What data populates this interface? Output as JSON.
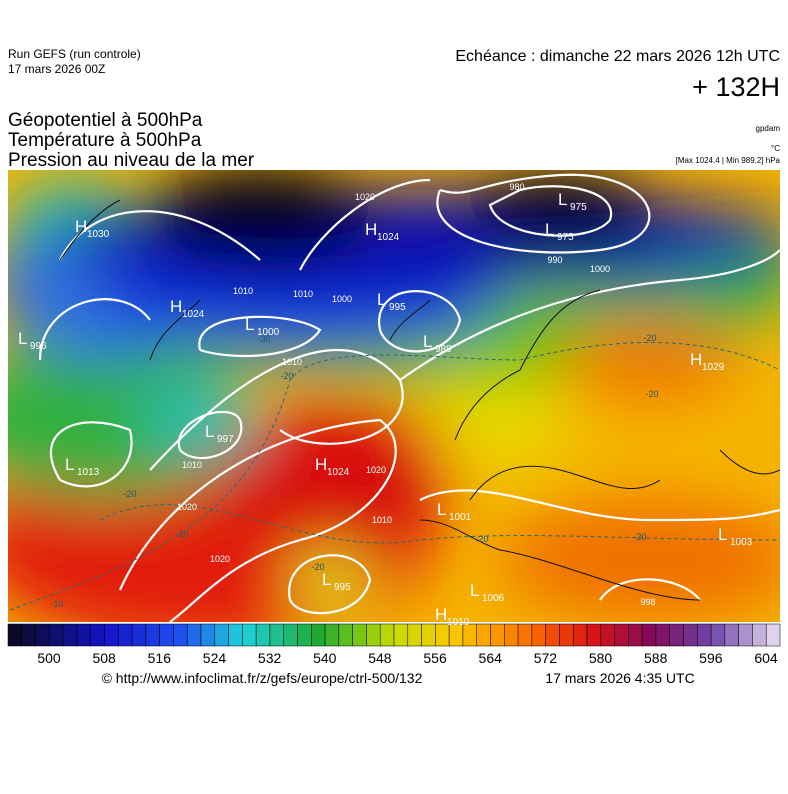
{
  "header": {
    "run": "Run GEFS (run controle)",
    "run_date": "17 mars 2026 00Z",
    "echeance": "Echéance : dimanche 22 mars 2026 12h UTC",
    "lead": "+ 132H"
  },
  "titles": [
    "Géopotentiel à 500hPa",
    "Température à 500hPa",
    "Pression au niveau de la mer"
  ],
  "units": {
    "geopotential": "gpdam",
    "temperature": "°C",
    "pressure": "[Max 1024.4 | Min 989.2] hPa"
  },
  "systems": [
    {
      "letter": "H",
      "value": "1030"
    },
    {
      "letter": "L",
      "value": "996"
    },
    {
      "letter": "H",
      "value": "1024"
    },
    {
      "letter": "L",
      "value": "1000"
    },
    {
      "letter": "H",
      "value": "1024"
    },
    {
      "letter": "L",
      "value": "995"
    },
    {
      "letter": "L",
      "value": "989"
    },
    {
      "letter": "L",
      "value": "975"
    },
    {
      "letter": "L",
      "value": "975"
    },
    {
      "letter": "H",
      "value": "1029"
    },
    {
      "letter": "L",
      "value": "997"
    },
    {
      "letter": "L",
      "value": "1013"
    },
    {
      "letter": "H",
      "value": "1024"
    },
    {
      "letter": "L",
      "value": "1001"
    },
    {
      "letter": "L",
      "value": "1003"
    },
    {
      "letter": "L",
      "value": "995"
    },
    {
      "letter": "L",
      "value": "1006"
    },
    {
      "letter": "H",
      "value": "1010"
    }
  ],
  "isobar_labels": [
    "1020",
    "990",
    "1000",
    "1010",
    "1010",
    "1000",
    "1010",
    "1010",
    "1020",
    "1020",
    "1020",
    "1010",
    "980",
    "998"
  ],
  "temperature_labels": [
    "-20",
    "-20",
    "-20",
    "-20",
    "-20",
    "-20",
    "-10",
    "-10",
    "-30",
    "-20"
  ],
  "colorbar": [
    500,
    508,
    516,
    524,
    532,
    540,
    548,
    556,
    564,
    572,
    580,
    588,
    596,
    604
  ],
  "footer": {
    "url": "© http://www.infoclimat.fr/z/gefs/europe/ctrl-500/132",
    "date": "17 mars 2026  4:35 UTC"
  }
}
